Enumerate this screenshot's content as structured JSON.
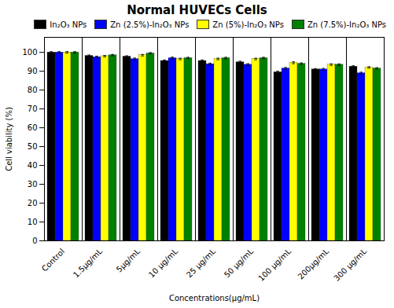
{
  "chart_data": {
    "type": "bar",
    "title": "Normal HUVECs Cells",
    "xlabel": "Concentrations(μg/mL)",
    "ylabel": "Cell viability (%)",
    "categories": [
      "Control",
      "1.5μg/mL",
      "5μg/mL",
      "10 μg/mL",
      "25 μg/mL",
      "50 μg/mL",
      "100 μg/mL",
      "200μg/mL",
      "300 μg/mL"
    ],
    "series": [
      {
        "name": "In₂O₃ NPs",
        "color": "#000000",
        "values": [
          100.0,
          98.2,
          97.8,
          95.5,
          95.5,
          94.8,
          89.5,
          91.0,
          92.5
        ],
        "errors": [
          0.4,
          0.4,
          0.4,
          0.5,
          0.5,
          0.5,
          0.5,
          0.4,
          0.4
        ]
      },
      {
        "name": "Zn (2.5%)-In₂O₃ NPs",
        "color": "#0000ff",
        "values": [
          100.0,
          97.5,
          96.5,
          97.0,
          93.8,
          93.5,
          91.5,
          91.0,
          89.0
        ],
        "errors": [
          0.4,
          0.5,
          0.5,
          0.5,
          0.5,
          0.5,
          0.5,
          0.5,
          0.5
        ]
      },
      {
        "name": "Zn (5%)-In₂O₃ NPs",
        "color": "#ffff00",
        "values": [
          100.0,
          98.0,
          98.5,
          96.5,
          96.5,
          96.5,
          94.5,
          93.5,
          92.0
        ],
        "errors": [
          0.4,
          0.4,
          0.4,
          0.4,
          0.4,
          0.4,
          0.5,
          0.4,
          0.4
        ]
      },
      {
        "name": "Zn (7.5%)-In₂O₃ NPs",
        "color": "#008000",
        "values": [
          100.0,
          98.5,
          99.5,
          97.0,
          97.0,
          97.0,
          94.0,
          93.5,
          91.5
        ],
        "errors": [
          0.4,
          0.4,
          0.4,
          0.4,
          0.4,
          0.4,
          0.4,
          0.4,
          0.4
        ]
      }
    ],
    "ylim": [
      0,
      108
    ],
    "yticks": [
      0,
      10,
      20,
      30,
      40,
      50,
      60,
      70,
      80,
      90,
      100
    ],
    "legend": "upper right",
    "grid": false
  }
}
